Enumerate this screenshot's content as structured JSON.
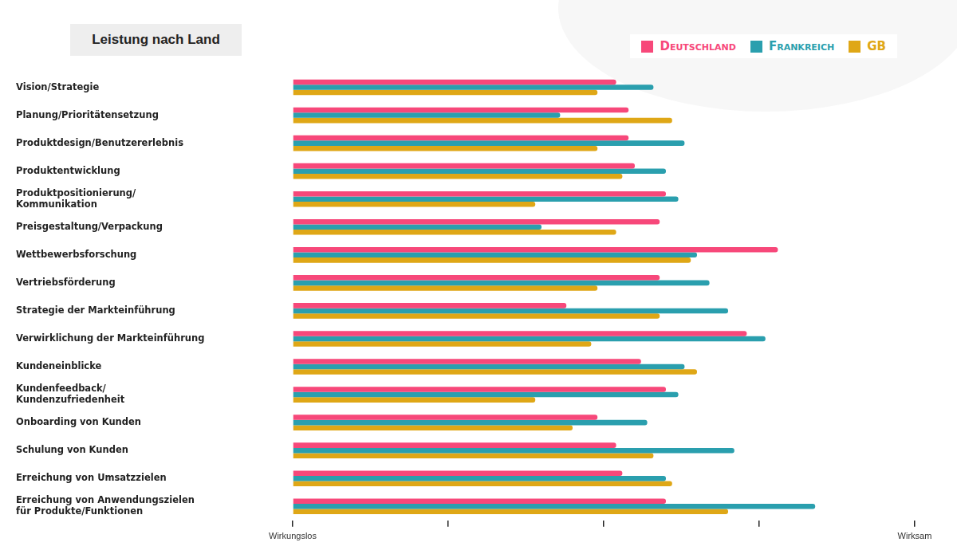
{
  "chart_data": {
    "type": "bar",
    "title": "Leistung nach Land",
    "orientation": "horizontal",
    "legend": "top-right",
    "grid": false,
    "categories": [
      "Vision/Strategie",
      "Planung/Prioritätensetzung",
      "Produktdesign/Benutzererlebnis",
      "Produktentwicklung",
      "Produktpositionierung/\nKommunikation",
      "Preisgestaltung/Verpackung",
      "Wettbewerbsforschung",
      "Vertriebsförderung",
      "Strategie der Markteinführung",
      "Verwirklichung der Markteinführung",
      "Kundeneinblicke",
      "Kundenfeedback/\nKundenzufriedenheit",
      "Onboarding von Kunden",
      "Schulung von Kunden",
      "Erreichung von Umsatzzielen",
      "Erreichung von Anwendungszielen\nfür Produkte/Funktionen"
    ],
    "series": [
      {
        "name": "Deutschland",
        "color": "#f7487a",
        "values": [
          52,
          54,
          54,
          55,
          60,
          59,
          78,
          59,
          44,
          73,
          56,
          60,
          49,
          52,
          53,
          60
        ]
      },
      {
        "name": "Frankreich",
        "color": "#2a9fae",
        "values": [
          58,
          43,
          63,
          60,
          62,
          40,
          65,
          67,
          70,
          76,
          63,
          62,
          57,
          71,
          60,
          84
        ]
      },
      {
        "name": "GB",
        "color": "#dfa716",
        "values": [
          49,
          61,
          49,
          53,
          39,
          52,
          64,
          49,
          59,
          48,
          65,
          39,
          45,
          58,
          61,
          70
        ]
      }
    ],
    "xlim": [
      0,
      100
    ],
    "xticks": [
      {
        "value": 0,
        "label": "Wirkungslos"
      },
      {
        "value": 25,
        "label": null
      },
      {
        "value": 50,
        "label": null
      },
      {
        "value": 75,
        "label": null
      },
      {
        "value": 100,
        "label": "Wirksam"
      }
    ]
  }
}
